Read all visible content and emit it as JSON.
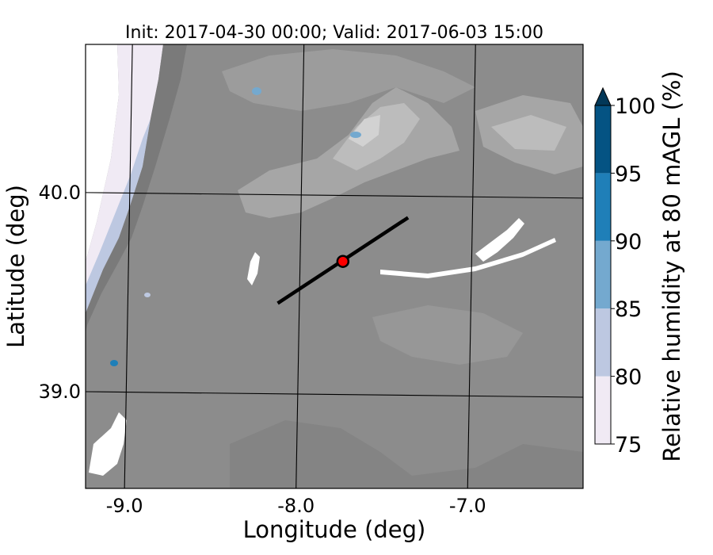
{
  "chart_data": {
    "type": "heatmap",
    "title": "Init: 2017-04-30 00:00; Valid: 2017-06-03 15:00",
    "xlabel": "Longitude (deg)",
    "ylabel": "Latitude (deg)",
    "xlim": [
      -9.25,
      -6.35
    ],
    "ylim": [
      38.55,
      40.78
    ],
    "x_ticks": [
      {
        "value": -9.0,
        "label": "-9.0"
      },
      {
        "value": -8.0,
        "label": "-8.0"
      },
      {
        "value": -7.0,
        "label": "-7.0"
      }
    ],
    "y_ticks": [
      {
        "value": 40.0,
        "label": "40.0"
      },
      {
        "value": 39.0,
        "label": "39.0"
      }
    ],
    "grid": true,
    "colorbar": {
      "label": "Relative humidity at 80 mAGL (%)",
      "levels": [
        75,
        80,
        85,
        90,
        95,
        100
      ],
      "tick_labels": [
        "75",
        "80",
        "85",
        "90",
        "95",
        "100"
      ],
      "colors": [
        "#f0eaf4",
        "#bdc8e1",
        "#74a9cf",
        "#1f7fb8",
        "#045383"
      ],
      "extend": "max",
      "extend_color": "#023858"
    },
    "cross_section": {
      "start": [
        -8.13,
        39.48
      ],
      "end": [
        -7.37,
        39.91
      ]
    },
    "marker": {
      "lon": -7.75,
      "lat": 39.69,
      "color": "#ff0000"
    },
    "terrain_color": "#8c8c8c"
  }
}
